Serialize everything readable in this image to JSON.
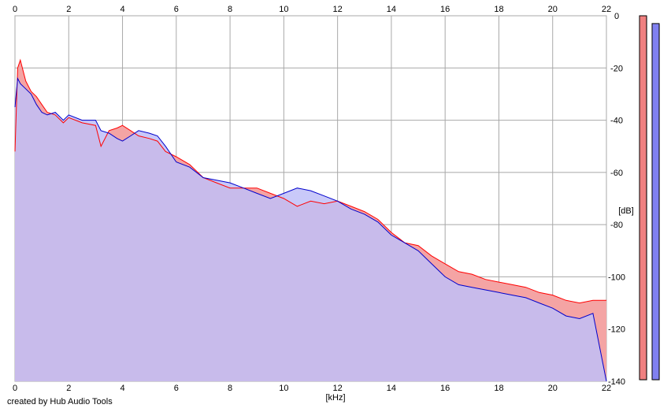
{
  "credit": "created by Hub Audio Tools",
  "chart_data": {
    "type": "area",
    "xlabel": "[kHz]",
    "ylabel": "[dB]",
    "xlim": [
      0,
      22
    ],
    "ylim": [
      -140,
      0
    ],
    "x_ticks": [
      "0",
      "2",
      "4",
      "6",
      "8",
      "10",
      "12",
      "14",
      "16",
      "18",
      "20",
      "22"
    ],
    "y_ticks": [
      "0",
      "-20",
      "-40",
      "-60",
      "-80",
      "-100",
      "-120",
      "-140"
    ],
    "grid": true,
    "series": [
      {
        "color": "#ff0000",
        "fill": "#f4a4a4",
        "x": [
          0,
          0.1,
          0.2,
          0.4,
          0.6,
          0.8,
          1.0,
          1.2,
          1.5,
          1.8,
          2.0,
          2.5,
          3.0,
          3.2,
          3.5,
          3.8,
          4.0,
          4.3,
          4.6,
          5.0,
          5.3,
          5.6,
          6.0,
          6.5,
          7.0,
          7.5,
          8.0,
          8.5,
          9.0,
          9.5,
          10.0,
          10.5,
          11.0,
          11.5,
          12.0,
          12.5,
          13.0,
          13.5,
          14.0,
          14.5,
          15.0,
          15.5,
          16.0,
          16.5,
          17.0,
          17.5,
          18.0,
          18.5,
          19.0,
          19.5,
          20.0,
          20.5,
          21.0,
          21.5,
          22.0
        ],
        "values": [
          -52,
          -20,
          -17,
          -25,
          -29,
          -31,
          -34,
          -37,
          -38,
          -41,
          -39,
          -41,
          -42,
          -50,
          -44,
          -43,
          -42,
          -44,
          -46,
          -47,
          -48,
          -52,
          -54,
          -57,
          -62,
          -64,
          -66,
          -66,
          -66,
          -68,
          -70,
          -73,
          -71,
          -72,
          -71,
          -73,
          -75,
          -78,
          -83,
          -87,
          -88,
          -92,
          -95,
          -98,
          -99,
          -101,
          -102,
          -103,
          -104,
          -106,
          -107,
          -109,
          -110,
          -109,
          -109
        ]
      },
      {
        "color": "#0000cc",
        "fill": "#c0c0f8",
        "x": [
          0,
          0.1,
          0.2,
          0.4,
          0.6,
          0.8,
          1.0,
          1.2,
          1.5,
          1.8,
          2.0,
          2.5,
          3.0,
          3.2,
          3.5,
          3.8,
          4.0,
          4.3,
          4.6,
          5.0,
          5.3,
          5.6,
          6.0,
          6.5,
          7.0,
          7.5,
          8.0,
          8.5,
          9.0,
          9.5,
          10.0,
          10.5,
          11.0,
          11.5,
          12.0,
          12.5,
          13.0,
          13.5,
          14.0,
          14.5,
          15.0,
          15.5,
          16.0,
          16.5,
          17.0,
          17.5,
          18.0,
          18.5,
          19.0,
          19.5,
          20.0,
          20.5,
          21.0,
          21.5,
          22.0
        ],
        "values": [
          -35,
          -24,
          -26,
          -28,
          -30,
          -34,
          -37,
          -38,
          -37,
          -40,
          -38,
          -40,
          -40,
          -44,
          -45,
          -47,
          -48,
          -46,
          -44,
          -45,
          -46,
          -50,
          -56,
          -58,
          -62,
          -63,
          -64,
          -66,
          -68,
          -70,
          -68,
          -66,
          -67,
          -69,
          -71,
          -74,
          -76,
          -79,
          -84,
          -87,
          -90,
          -95,
          -100,
          -103,
          -104,
          -105,
          -106,
          -107,
          -108,
          -110,
          -112,
          -115,
          -116,
          -114,
          -140
        ]
      }
    ],
    "level_bars": [
      {
        "color": "#f08080",
        "level_db": 0
      },
      {
        "color": "#8080f0",
        "level_db": -3
      }
    ]
  }
}
